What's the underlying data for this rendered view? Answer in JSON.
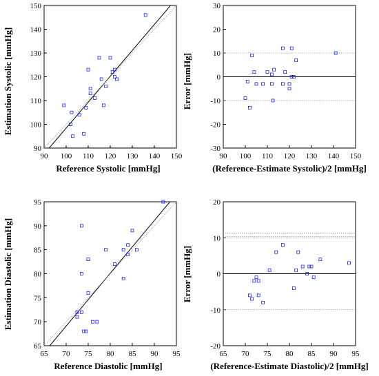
{
  "chart_data": [
    {
      "type": "scatter",
      "title": "",
      "xlabel": "Reference Systolic [mmHg]",
      "ylabel": "Estimation Systolic [mmHg]",
      "xlim": [
        90,
        150
      ],
      "ylim": [
        90,
        150
      ],
      "xticks": [
        90,
        100,
        110,
        120,
        130,
        140,
        150
      ],
      "yticks": [
        90,
        100,
        110,
        120,
        130,
        140,
        150
      ],
      "grid": false,
      "lines": [
        {
          "style": "solid",
          "color": "#000000",
          "x": [
            90,
            150
          ],
          "y": [
            87.5,
            152.9
          ]
        },
        {
          "style": "dotted",
          "color": "#999999",
          "x": [
            90,
            150
          ],
          "y": [
            90,
            150
          ]
        }
      ],
      "points": [
        {
          "x": 99,
          "y": 108
        },
        {
          "x": 102,
          "y": 100
        },
        {
          "x": 102.5,
          "y": 105
        },
        {
          "x": 103,
          "y": 95
        },
        {
          "x": 106,
          "y": 104
        },
        {
          "x": 108,
          "y": 96
        },
        {
          "x": 109,
          "y": 107
        },
        {
          "x": 110,
          "y": 123
        },
        {
          "x": 111,
          "y": 113
        },
        {
          "x": 111,
          "y": 115
        },
        {
          "x": 113,
          "y": 111
        },
        {
          "x": 115,
          "y": 128
        },
        {
          "x": 116,
          "y": 119
        },
        {
          "x": 117,
          "y": 108
        },
        {
          "x": 118,
          "y": 116
        },
        {
          "x": 120,
          "y": 128
        },
        {
          "x": 121,
          "y": 122
        },
        {
          "x": 122,
          "y": 123
        },
        {
          "x": 122,
          "y": 120
        },
        {
          "x": 123,
          "y": 119
        },
        {
          "x": 136,
          "y": 146
        }
      ]
    },
    {
      "type": "scatter",
      "title": "",
      "xlabel": "(Reference-Estimate Systolic)/2 [mmHg]",
      "ylabel": "Error [mmHg]",
      "xlim": [
        90,
        150
      ],
      "ylim": [
        -30,
        30
      ],
      "xticks": [
        90,
        100,
        110,
        120,
        130,
        140,
        150
      ],
      "yticks": [
        -30,
        -20,
        -10,
        0,
        10,
        20,
        30
      ],
      "grid": false,
      "lines": [
        {
          "style": "solid",
          "color": "#000000",
          "y": 0
        },
        {
          "style": "dotted",
          "color": "#999999",
          "y": 10
        },
        {
          "style": "dotted",
          "color": "#999999",
          "y": -10
        }
      ],
      "points": [
        {
          "x": 100,
          "y": -9
        },
        {
          "x": 101,
          "y": -2
        },
        {
          "x": 102,
          "y": -13
        },
        {
          "x": 103,
          "y": 9
        },
        {
          "x": 104,
          "y": 2
        },
        {
          "x": 105,
          "y": -3
        },
        {
          "x": 108,
          "y": -3
        },
        {
          "x": 110,
          "y": 2
        },
        {
          "x": 112,
          "y": -3
        },
        {
          "x": 112,
          "y": 1
        },
        {
          "x": 112.5,
          "y": -10
        },
        {
          "x": 113,
          "y": 3
        },
        {
          "x": 117,
          "y": 12
        },
        {
          "x": 117,
          "y": -3
        },
        {
          "x": 118,
          "y": 2
        },
        {
          "x": 120,
          "y": -5
        },
        {
          "x": 120,
          "y": -3
        },
        {
          "x": 121,
          "y": 12
        },
        {
          "x": 121,
          "y": 0
        },
        {
          "x": 122,
          "y": 0
        },
        {
          "x": 123,
          "y": 7
        },
        {
          "x": 141,
          "y": 10
        }
      ]
    },
    {
      "type": "scatter",
      "title": "",
      "xlabel": "Reference Diastolic [mmHg]",
      "ylabel": "Estimation Diastolic [mmHg]",
      "xlim": [
        65,
        95
      ],
      "ylim": [
        65,
        95
      ],
      "xticks": [
        65,
        70,
        75,
        80,
        85,
        90,
        95
      ],
      "yticks": [
        65,
        70,
        75,
        80,
        85,
        90,
        95
      ],
      "grid": false,
      "lines": [
        {
          "style": "solid",
          "color": "#000000",
          "x": [
            65,
            95
          ],
          "y": [
            63.6,
            96.6
          ]
        },
        {
          "style": "dotted",
          "color": "#999999",
          "x": [
            65,
            95
          ],
          "y": [
            65,
            95
          ]
        }
      ],
      "points": [
        {
          "x": 72.5,
          "y": 71
        },
        {
          "x": 72.5,
          "y": 72
        },
        {
          "x": 73.5,
          "y": 72
        },
        {
          "x": 73.5,
          "y": 80
        },
        {
          "x": 73.5,
          "y": 90
        },
        {
          "x": 74,
          "y": 68
        },
        {
          "x": 74.5,
          "y": 68
        },
        {
          "x": 75,
          "y": 83
        },
        {
          "x": 75,
          "y": 76
        },
        {
          "x": 76,
          "y": 70
        },
        {
          "x": 77,
          "y": 70
        },
        {
          "x": 79,
          "y": 85
        },
        {
          "x": 81,
          "y": 82
        },
        {
          "x": 83,
          "y": 79
        },
        {
          "x": 83,
          "y": 85
        },
        {
          "x": 84,
          "y": 84
        },
        {
          "x": 84,
          "y": 86
        },
        {
          "x": 85,
          "y": 89
        },
        {
          "x": 86,
          "y": 85
        },
        {
          "x": 92,
          "y": 95
        }
      ]
    },
    {
      "type": "scatter",
      "title": "",
      "xlabel": "(Reference-Estimate Diastolic)/2 [mmHg]",
      "ylabel": "Error [mmHg]",
      "xlim": [
        65,
        95
      ],
      "ylim": [
        -20,
        20
      ],
      "xticks": [
        65,
        70,
        75,
        80,
        85,
        90,
        95
      ],
      "yticks": [
        -20,
        -10,
        0,
        10,
        20
      ],
      "grid": false,
      "lines": [
        {
          "style": "solid",
          "color": "#000000",
          "y": 0
        },
        {
          "style": "dotted",
          "color": "#999999",
          "y": 10
        },
        {
          "style": "dotted",
          "color": "#999999",
          "y": -10
        },
        {
          "style": "dotted",
          "color": "#999999",
          "y": 11.3
        },
        {
          "style": "dotted",
          "color": "#999999",
          "y": 10.3
        }
      ],
      "points": [
        {
          "x": 71,
          "y": -6
        },
        {
          "x": 71.5,
          "y": -7
        },
        {
          "x": 72,
          "y": -2
        },
        {
          "x": 72.5,
          "y": -1
        },
        {
          "x": 73,
          "y": -6
        },
        {
          "x": 73,
          "y": -2
        },
        {
          "x": 74,
          "y": -8
        },
        {
          "x": 75.5,
          "y": 1
        },
        {
          "x": 77,
          "y": 6
        },
        {
          "x": 78.5,
          "y": 8
        },
        {
          "x": 81,
          "y": -4
        },
        {
          "x": 81.5,
          "y": 1
        },
        {
          "x": 82,
          "y": 6
        },
        {
          "x": 83,
          "y": 2
        },
        {
          "x": 84,
          "y": 0
        },
        {
          "x": 84.5,
          "y": 2
        },
        {
          "x": 85,
          "y": 2
        },
        {
          "x": 85.5,
          "y": -1
        },
        {
          "x": 87,
          "y": 4
        },
        {
          "x": 93.5,
          "y": 3
        }
      ]
    }
  ]
}
